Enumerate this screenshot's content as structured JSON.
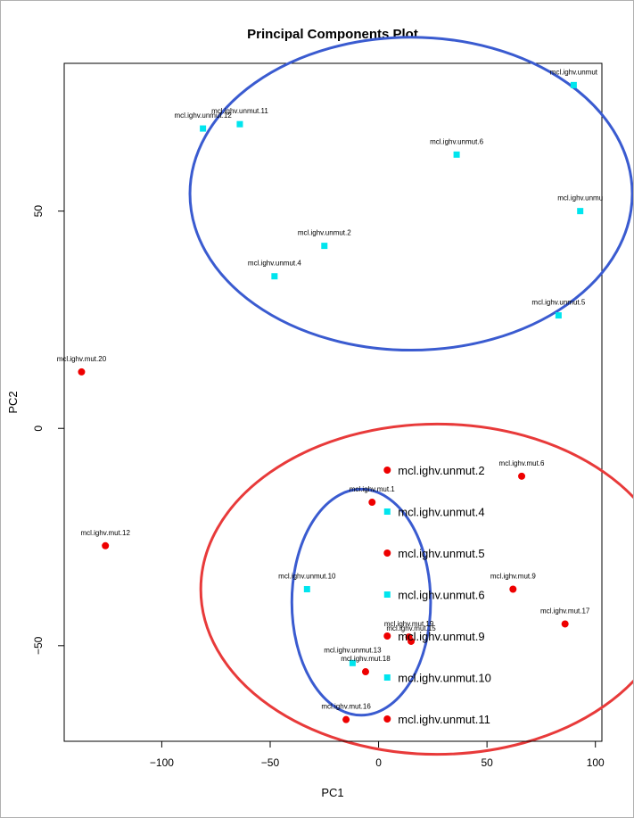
{
  "chart_data": {
    "type": "scatter",
    "title": "Principal Components Plot",
    "xlabel": "PC1",
    "ylabel": "PC2",
    "xlim": [
      -145,
      103
    ],
    "ylim": [
      -72,
      84
    ],
    "x_ticks": [
      -100,
      -50,
      0,
      50,
      100
    ],
    "y_ticks": [
      -50,
      0,
      50
    ],
    "x_tick_labels": [
      "−100",
      "−50",
      "0",
      "50",
      "100"
    ],
    "y_tick_labels": [
      "−50",
      "0",
      "50"
    ],
    "grid": false,
    "colors": {
      "unmut": "#00e5ee",
      "mut": "#ee0000",
      "ellipse_blue": "#3a5bd0",
      "ellipse_red": "#e83a3a"
    },
    "series": [
      {
        "name": "mcl.ighv.unmut",
        "marker": "square",
        "color": "#00e5ee",
        "points": [
          {
            "label": "mcl.ighv.unmut.11",
            "x": -64,
            "y": 70
          },
          {
            "label": "mcl.ighv.unmut.12",
            "x": -81,
            "y": 69
          },
          {
            "label": "mcl.ighv.unmut.6",
            "x": 36,
            "y": 63
          },
          {
            "label": "mcl.ighv.unmut",
            "x": 90,
            "y": 79
          },
          {
            "label": "mcl.ighv.unmu",
            "x": 93,
            "y": 50
          },
          {
            "label": "mcl.ighv.unmut.2",
            "x": -25,
            "y": 42
          },
          {
            "label": "mcl.ighv.unmut.4",
            "x": -48,
            "y": 35
          },
          {
            "label": "mcl.ighv.unmut.5",
            "x": 83,
            "y": 26
          },
          {
            "label": "mcl.ighv.unmut.10",
            "x": -33,
            "y": -37
          },
          {
            "label": "mcl.ighv.unmut.13",
            "x": -12,
            "y": -54
          }
        ]
      },
      {
        "name": "mcl.ighv.mut",
        "marker": "circle",
        "color": "#ee0000",
        "points": [
          {
            "label": "mcl.ighv.mut.20",
            "x": -137,
            "y": 13
          },
          {
            "label": "mcl.ighv.mut.12",
            "x": -126,
            "y": -27
          },
          {
            "label": "mcl.ighv.mut.1",
            "x": -3,
            "y": -17
          },
          {
            "label": "mcl.ighv.mut.6",
            "x": 66,
            "y": -11
          },
          {
            "label": "mcl.ighv.mut.9",
            "x": 62,
            "y": -37
          },
          {
            "label": "mcl.ighv.mut.17",
            "x": 86,
            "y": -45
          },
          {
            "label": "mcl.ighv.mut.19",
            "x": 14,
            "y": -48
          },
          {
            "label": "mcl.ighv.mut.15",
            "x": 15,
            "y": -49
          },
          {
            "label": "mcl.ighv.mut.18",
            "x": -6,
            "y": -56
          },
          {
            "label": "mcl.ighv.mut.16",
            "x": -15,
            "y": -67
          }
        ]
      }
    ],
    "legend": {
      "placement": "center-right of lower cluster",
      "entries": [
        {
          "label": "mcl.ighv.unmut.2",
          "marker": "circle",
          "color": "#ee0000"
        },
        {
          "label": "mcl.ighv.unmut.4",
          "marker": "square",
          "color": "#00e5ee"
        },
        {
          "label": "mcl.ighv.unmut.5",
          "marker": "circle",
          "color": "#ee0000"
        },
        {
          "label": "mcl.ighv.unmut.6",
          "marker": "square",
          "color": "#00e5ee"
        },
        {
          "label": "mcl.ighv.unmut.9",
          "marker": "circle",
          "color": "#ee0000"
        },
        {
          "label": "mcl.ighv.unmut.10",
          "marker": "square",
          "color": "#00e5ee"
        },
        {
          "label": "mcl.ighv.unmut.11",
          "marker": "circle",
          "color": "#ee0000"
        }
      ]
    },
    "ellipses": [
      {
        "name": "unmut-cluster-ellipse",
        "color": "#3a5bd0",
        "cx": 15,
        "cy": 54,
        "rx": 102,
        "ry": 36
      },
      {
        "name": "mut-cluster-ellipse",
        "color": "#e83a3a",
        "cx": 27,
        "cy": -37,
        "rx": 109,
        "ry": 38
      },
      {
        "name": "inner-cluster-ellipse",
        "color": "#3a5bd0",
        "cx": -8,
        "cy": -40,
        "rx": 32,
        "ry": 26
      }
    ]
  }
}
